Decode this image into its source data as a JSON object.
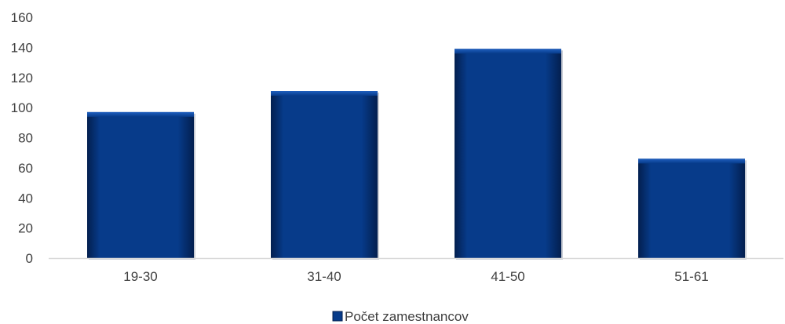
{
  "chart_data": {
    "type": "bar",
    "categories": [
      "19-30",
      "31-40",
      "41-50",
      "51-61"
    ],
    "series": [
      {
        "name": "Počet zamestnancov",
        "values": [
          97,
          111,
          139,
          66
        ]
      }
    ],
    "ylim": [
      0,
      160
    ],
    "yticks": [
      "0",
      "20",
      "40",
      "60",
      "80",
      "100",
      "120",
      "140",
      "160"
    ],
    "grid": false,
    "legend_position": "bottom",
    "colors": {
      "bar": "#073b8a",
      "bar_light": "#1f5fbf",
      "bar_dark": "#031f4f",
      "axis": "#d9d9d9",
      "text": "#404040"
    }
  }
}
